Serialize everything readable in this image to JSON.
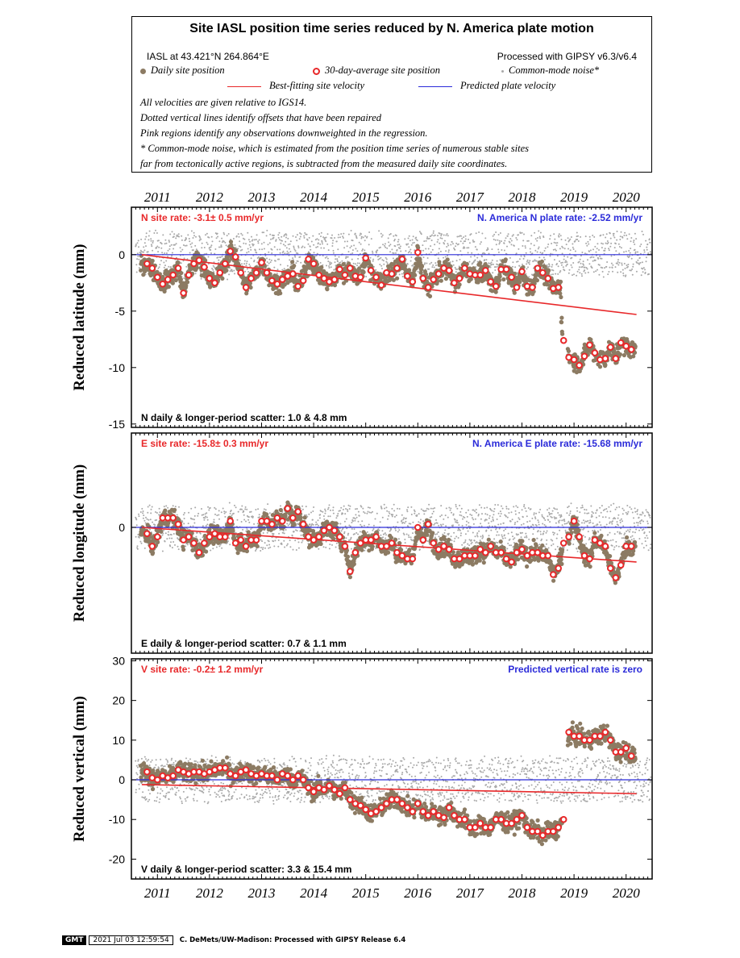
{
  "legend": {
    "title": "Site IASL position time series reduced by N. America plate motion",
    "site_location": "IASL at 43.421°N 264.864°E",
    "processing": "Processed with GIPSY v6.3/v6.4",
    "daily_label": "Daily site position",
    "avg_label": "30-day-average site position",
    "cm_label": "Common-mode noise*",
    "best_fit_label": "Best-fitting site velocity",
    "predicted_label": "Predicted plate velocity",
    "notes": [
      "All velocities are given relative to IGS14.",
      "Dotted vertical lines identify offsets that have been repaired",
      "Pink regions identify any observations downweighted in the regression.",
      "* Common-mode noise, which is estimated from the position time series of numerous stable sites",
      "far from tectonically active regions, is subtracted from the measured daily site coordinates."
    ]
  },
  "colors": {
    "daily": "#8c7b63",
    "avg_ring": "#e8282a",
    "common_mode": "#a8a8a8",
    "best_fit": "#e8282a",
    "predicted": "#2b2bd9",
    "site_rate_text": "#e8282a",
    "plate_rate_text": "#2b2bd9"
  },
  "chart_data": [
    {
      "type": "scatter",
      "ylabel": "Reduced latitude (mm)",
      "site_rate": "N site rate:  -3.1± 0.5 mm/yr",
      "plate_rate": "N. America N plate rate: -2.52 mm/yr",
      "scatter": "N daily & longer-period scatter:   1.0 &   4.8 mm",
      "xlim": [
        2010.5,
        2020.5
      ],
      "ylim": [
        -15.3,
        4.2
      ],
      "x_ticks": [
        2011,
        2012,
        2013,
        2014,
        2015,
        2016,
        2017,
        2018,
        2019,
        2020
      ],
      "y_ticks": [
        0,
        -5,
        -10,
        -15
      ],
      "y_tick_labels": [
        "0",
        "-5",
        "-10",
        "-15"
      ],
      "best_fit": {
        "x": [
          2010.7,
          2020.2
        ],
        "y": [
          0.0,
          -5.3
        ]
      },
      "predicted": {
        "x": [
          2010.5,
          2020.5
        ],
        "y": [
          0.0,
          0.0
        ]
      },
      "avg_x": [
        2010.8,
        2010.9,
        2011.0,
        2011.1,
        2011.2,
        2011.3,
        2011.4,
        2011.5,
        2011.6,
        2011.7,
        2011.8,
        2011.9,
        2012.0,
        2012.1,
        2012.2,
        2012.3,
        2012.4,
        2012.5,
        2012.6,
        2012.7,
        2012.8,
        2012.9,
        2013.0,
        2013.1,
        2013.2,
        2013.3,
        2013.4,
        2013.5,
        2013.6,
        2013.7,
        2013.8,
        2013.9,
        2014.0,
        2014.1,
        2014.2,
        2014.3,
        2014.4,
        2014.5,
        2014.6,
        2014.7,
        2014.8,
        2014.9,
        2015.0,
        2015.1,
        2015.2,
        2015.3,
        2015.4,
        2015.5,
        2015.6,
        2015.7,
        2015.8,
        2015.9,
        2016.0,
        2016.1,
        2016.2,
        2016.3,
        2016.4,
        2016.5,
        2016.6,
        2016.7,
        2016.8,
        2016.9,
        2017.0,
        2017.1,
        2017.2,
        2017.3,
        2017.4,
        2017.5,
        2017.6,
        2017.7,
        2017.8,
        2017.9,
        2018.0,
        2018.1,
        2018.2,
        2018.3,
        2018.4,
        2018.5,
        2018.6,
        2018.7,
        2018.8,
        2018.9,
        2019.0,
        2019.1,
        2019.2,
        2019.3,
        2019.4,
        2019.5,
        2019.6,
        2019.7,
        2019.8,
        2019.9,
        2020.0,
        2020.1
      ],
      "avg_y": [
        -0.8,
        -1.2,
        -2.0,
        -2.6,
        -2.2,
        -1.8,
        -1.2,
        -3.4,
        -1.8,
        -0.8,
        -0.5,
        -1.1,
        -2.1,
        -2.5,
        -1.6,
        -0.8,
        0.3,
        -0.2,
        -1.6,
        -2.9,
        -2.1,
        -1.6,
        -0.7,
        -1.6,
        -2.3,
        -2.6,
        -2.2,
        -1.9,
        -1.7,
        -2.8,
        -2.3,
        -0.4,
        -0.8,
        -1.8,
        -2.1,
        -2.4,
        -2.2,
        -1.3,
        -1.8,
        -1.2,
        -1.9,
        -2.0,
        -0.3,
        -1.4,
        -2.0,
        -2.7,
        -1.6,
        -1.7,
        -1.2,
        -0.4,
        -1.9,
        -2.4,
        0.2,
        -2.1,
        -2.9,
        -2.2,
        -1.7,
        -1.2,
        -1.4,
        -2.5,
        -2.1,
        -1.2,
        -1.7,
        -1.8,
        -1.8,
        -1.4,
        -2.4,
        -2.8,
        -1.3,
        -1.3,
        -2.0,
        -2.9,
        -1.5,
        -2.8,
        -2.9,
        -1.2,
        -1.6,
        -2.1,
        -3.0,
        -2.9,
        -7.6,
        -9.1,
        -9.3,
        -9.8,
        -9.0,
        -8.0,
        -8.7,
        -9.3,
        -9.2,
        -8.2,
        -9.2,
        -7.8,
        -8.1,
        -8.4
      ]
    },
    {
      "type": "scatter",
      "ylabel": "Reduced longitude (mm)",
      "site_rate": "E site rate:  -15.8± 0.3 mm/yr",
      "plate_rate": "N. America E plate rate: -15.68 mm/yr",
      "scatter": "E daily & longer-period scatter:   0.7 &   1.1 mm",
      "xlim": [
        2010.5,
        2020.5
      ],
      "ylim": [
        -4.0,
        3.0
      ],
      "x_ticks": [
        2011,
        2012,
        2013,
        2014,
        2015,
        2016,
        2017,
        2018,
        2019,
        2020
      ],
      "y_ticks": [
        0
      ],
      "y_tick_labels": [
        "0"
      ],
      "best_fit": {
        "x": [
          2010.7,
          2020.2
        ],
        "y": [
          0.0,
          -1.1
        ]
      },
      "predicted": {
        "x": [
          2010.5,
          2020.5
        ],
        "y": [
          0.0,
          0.0
        ]
      },
      "avg_x": [
        2010.8,
        2010.9,
        2011.0,
        2011.1,
        2011.2,
        2011.3,
        2011.4,
        2011.5,
        2011.6,
        2011.7,
        2011.8,
        2011.9,
        2012.0,
        2012.1,
        2012.2,
        2012.3,
        2012.4,
        2012.5,
        2012.6,
        2012.7,
        2012.8,
        2012.9,
        2013.0,
        2013.1,
        2013.2,
        2013.3,
        2013.4,
        2013.5,
        2013.6,
        2013.7,
        2013.8,
        2013.9,
        2014.0,
        2014.1,
        2014.2,
        2014.3,
        2014.4,
        2014.5,
        2014.6,
        2014.7,
        2014.8,
        2014.9,
        2015.0,
        2015.1,
        2015.2,
        2015.3,
        2015.4,
        2015.5,
        2015.6,
        2015.7,
        2015.8,
        2015.9,
        2016.0,
        2016.1,
        2016.2,
        2016.3,
        2016.4,
        2016.5,
        2016.6,
        2016.7,
        2016.8,
        2016.9,
        2017.0,
        2017.1,
        2017.2,
        2017.3,
        2017.4,
        2017.5,
        2017.6,
        2017.7,
        2017.8,
        2017.9,
        2018.0,
        2018.1,
        2018.2,
        2018.3,
        2018.4,
        2018.5,
        2018.6,
        2018.7,
        2018.8,
        2018.9,
        2019.0,
        2019.1,
        2019.2,
        2019.3,
        2019.4,
        2019.5,
        2019.6,
        2019.7,
        2019.8,
        2019.9,
        2020.0,
        2020.1
      ],
      "avg_y": [
        -0.2,
        -0.6,
        -0.3,
        0.3,
        0.3,
        0.3,
        0.1,
        -0.4,
        -0.3,
        -0.5,
        -0.8,
        -0.5,
        -0.3,
        -0.2,
        -0.3,
        -0.3,
        0.2,
        -0.5,
        -0.4,
        -0.6,
        -0.4,
        -0.4,
        0.2,
        0.2,
        0.1,
        0.3,
        0.2,
        0.6,
        0.3,
        0.5,
        0.1,
        -0.3,
        -0.4,
        -0.3,
        -0.1,
        0.0,
        -0.1,
        -0.3,
        -0.6,
        -1.4,
        -0.8,
        -0.5,
        -0.4,
        -0.4,
        -0.3,
        -0.6,
        -0.6,
        -0.5,
        -0.8,
        -0.9,
        -1.0,
        -1.0,
        0.0,
        -0.4,
        0.1,
        -0.5,
        -0.7,
        -0.6,
        -0.7,
        -1.0,
        -1.0,
        -0.9,
        -0.9,
        -0.9,
        -0.7,
        -0.8,
        -0.6,
        -0.8,
        -0.8,
        -1.0,
        -1.1,
        -0.8,
        -0.7,
        -0.9,
        -0.8,
        -0.8,
        -0.9,
        -0.9,
        -1.5,
        -1.3,
        -0.5,
        -0.3,
        0.2,
        -0.3,
        -0.9,
        -1.0,
        -0.4,
        -0.5,
        -0.6,
        -1.3,
        -1.6,
        -1.2,
        -0.6,
        -0.6
      ]
    },
    {
      "type": "scatter",
      "ylabel": "Reduced vertical (mm)",
      "site_rate": "V site rate:  -0.2± 1.2 mm/yr",
      "plate_rate": "Predicted vertical rate is zero",
      "scatter": "V daily & longer-period scatter:   3.3 &  15.4 mm",
      "xlim": [
        2010.5,
        2020.5
      ],
      "ylim": [
        -25.0,
        30.5
      ],
      "x_ticks": [
        2011,
        2012,
        2013,
        2014,
        2015,
        2016,
        2017,
        2018,
        2019,
        2020
      ],
      "y_ticks": [
        30,
        20,
        10,
        0,
        -10,
        -20
      ],
      "y_tick_labels": [
        "30",
        "20",
        "10",
        "0",
        "-10",
        "-20"
      ],
      "best_fit": {
        "x": [
          2010.7,
          2020.2
        ],
        "y": [
          -1.2,
          -3.5
        ]
      },
      "predicted": {
        "x": [
          2010.5,
          2020.5
        ],
        "y": [
          0.0,
          0.0
        ]
      },
      "avg_x": [
        2010.8,
        2010.9,
        2011.0,
        2011.1,
        2011.2,
        2011.3,
        2011.4,
        2011.5,
        2011.6,
        2011.7,
        2011.8,
        2011.9,
        2012.0,
        2012.1,
        2012.2,
        2012.3,
        2012.4,
        2012.5,
        2012.6,
        2012.7,
        2012.8,
        2012.9,
        2013.0,
        2013.1,
        2013.2,
        2013.3,
        2013.4,
        2013.5,
        2013.6,
        2013.7,
        2013.8,
        2013.9,
        2014.0,
        2014.1,
        2014.2,
        2014.3,
        2014.4,
        2014.5,
        2014.6,
        2014.7,
        2014.8,
        2014.9,
        2015.0,
        2015.1,
        2015.2,
        2015.3,
        2015.4,
        2015.5,
        2015.6,
        2015.7,
        2015.8,
        2015.9,
        2016.0,
        2016.1,
        2016.2,
        2016.3,
        2016.4,
        2016.5,
        2016.6,
        2016.7,
        2016.8,
        2016.9,
        2017.0,
        2017.1,
        2017.2,
        2017.3,
        2017.4,
        2017.5,
        2017.6,
        2017.7,
        2017.8,
        2017.9,
        2018.0,
        2018.1,
        2018.2,
        2018.3,
        2018.4,
        2018.5,
        2018.6,
        2018.7,
        2018.8,
        2018.9,
        2019.0,
        2019.1,
        2019.2,
        2019.3,
        2019.4,
        2019.5,
        2019.6,
        2019.7,
        2019.8,
        2019.9,
        2020.0,
        2020.1
      ],
      "avg_y": [
        2.0,
        0.5,
        0.0,
        1.0,
        0.5,
        1.0,
        2.5,
        2.0,
        1.5,
        2.0,
        2.0,
        1.5,
        2.0,
        2.5,
        3.0,
        3.0,
        1.5,
        1.0,
        2.0,
        2.5,
        1.5,
        1.0,
        1.5,
        1.0,
        1.0,
        0.0,
        1.5,
        1.0,
        0.0,
        1.0,
        0.0,
        -2.0,
        -3.0,
        -2.0,
        -2.5,
        -1.5,
        -2.5,
        -3.5,
        -2.0,
        -5.0,
        -6.0,
        -6.5,
        -7.5,
        -8.5,
        -8.0,
        -7.0,
        -6.0,
        -5.0,
        -5.0,
        -6.0,
        -7.0,
        -8.0,
        -6.0,
        -8.0,
        -9.0,
        -8.0,
        -9.0,
        -9.5,
        -7.0,
        -9.0,
        -10.0,
        -10.0,
        -12.0,
        -12.0,
        -11.0,
        -12.0,
        -12.0,
        -10.0,
        -10.0,
        -11.0,
        -11.0,
        -10.0,
        -9.0,
        -12.0,
        -13.0,
        -13.0,
        -14.0,
        -13.0,
        -13.0,
        -12.0,
        -10.0,
        12.0,
        11.0,
        11.0,
        10.0,
        10.0,
        11.0,
        11.0,
        12.0,
        10.0,
        7.0,
        7.0,
        8.0,
        6.0
      ]
    }
  ],
  "footer": {
    "logo": "GMT",
    "timestamp": "2021 Jul 03 12:59:54",
    "credit": "C. DeMets/UW-Madison: Processed with GIPSY Release 6.4"
  }
}
